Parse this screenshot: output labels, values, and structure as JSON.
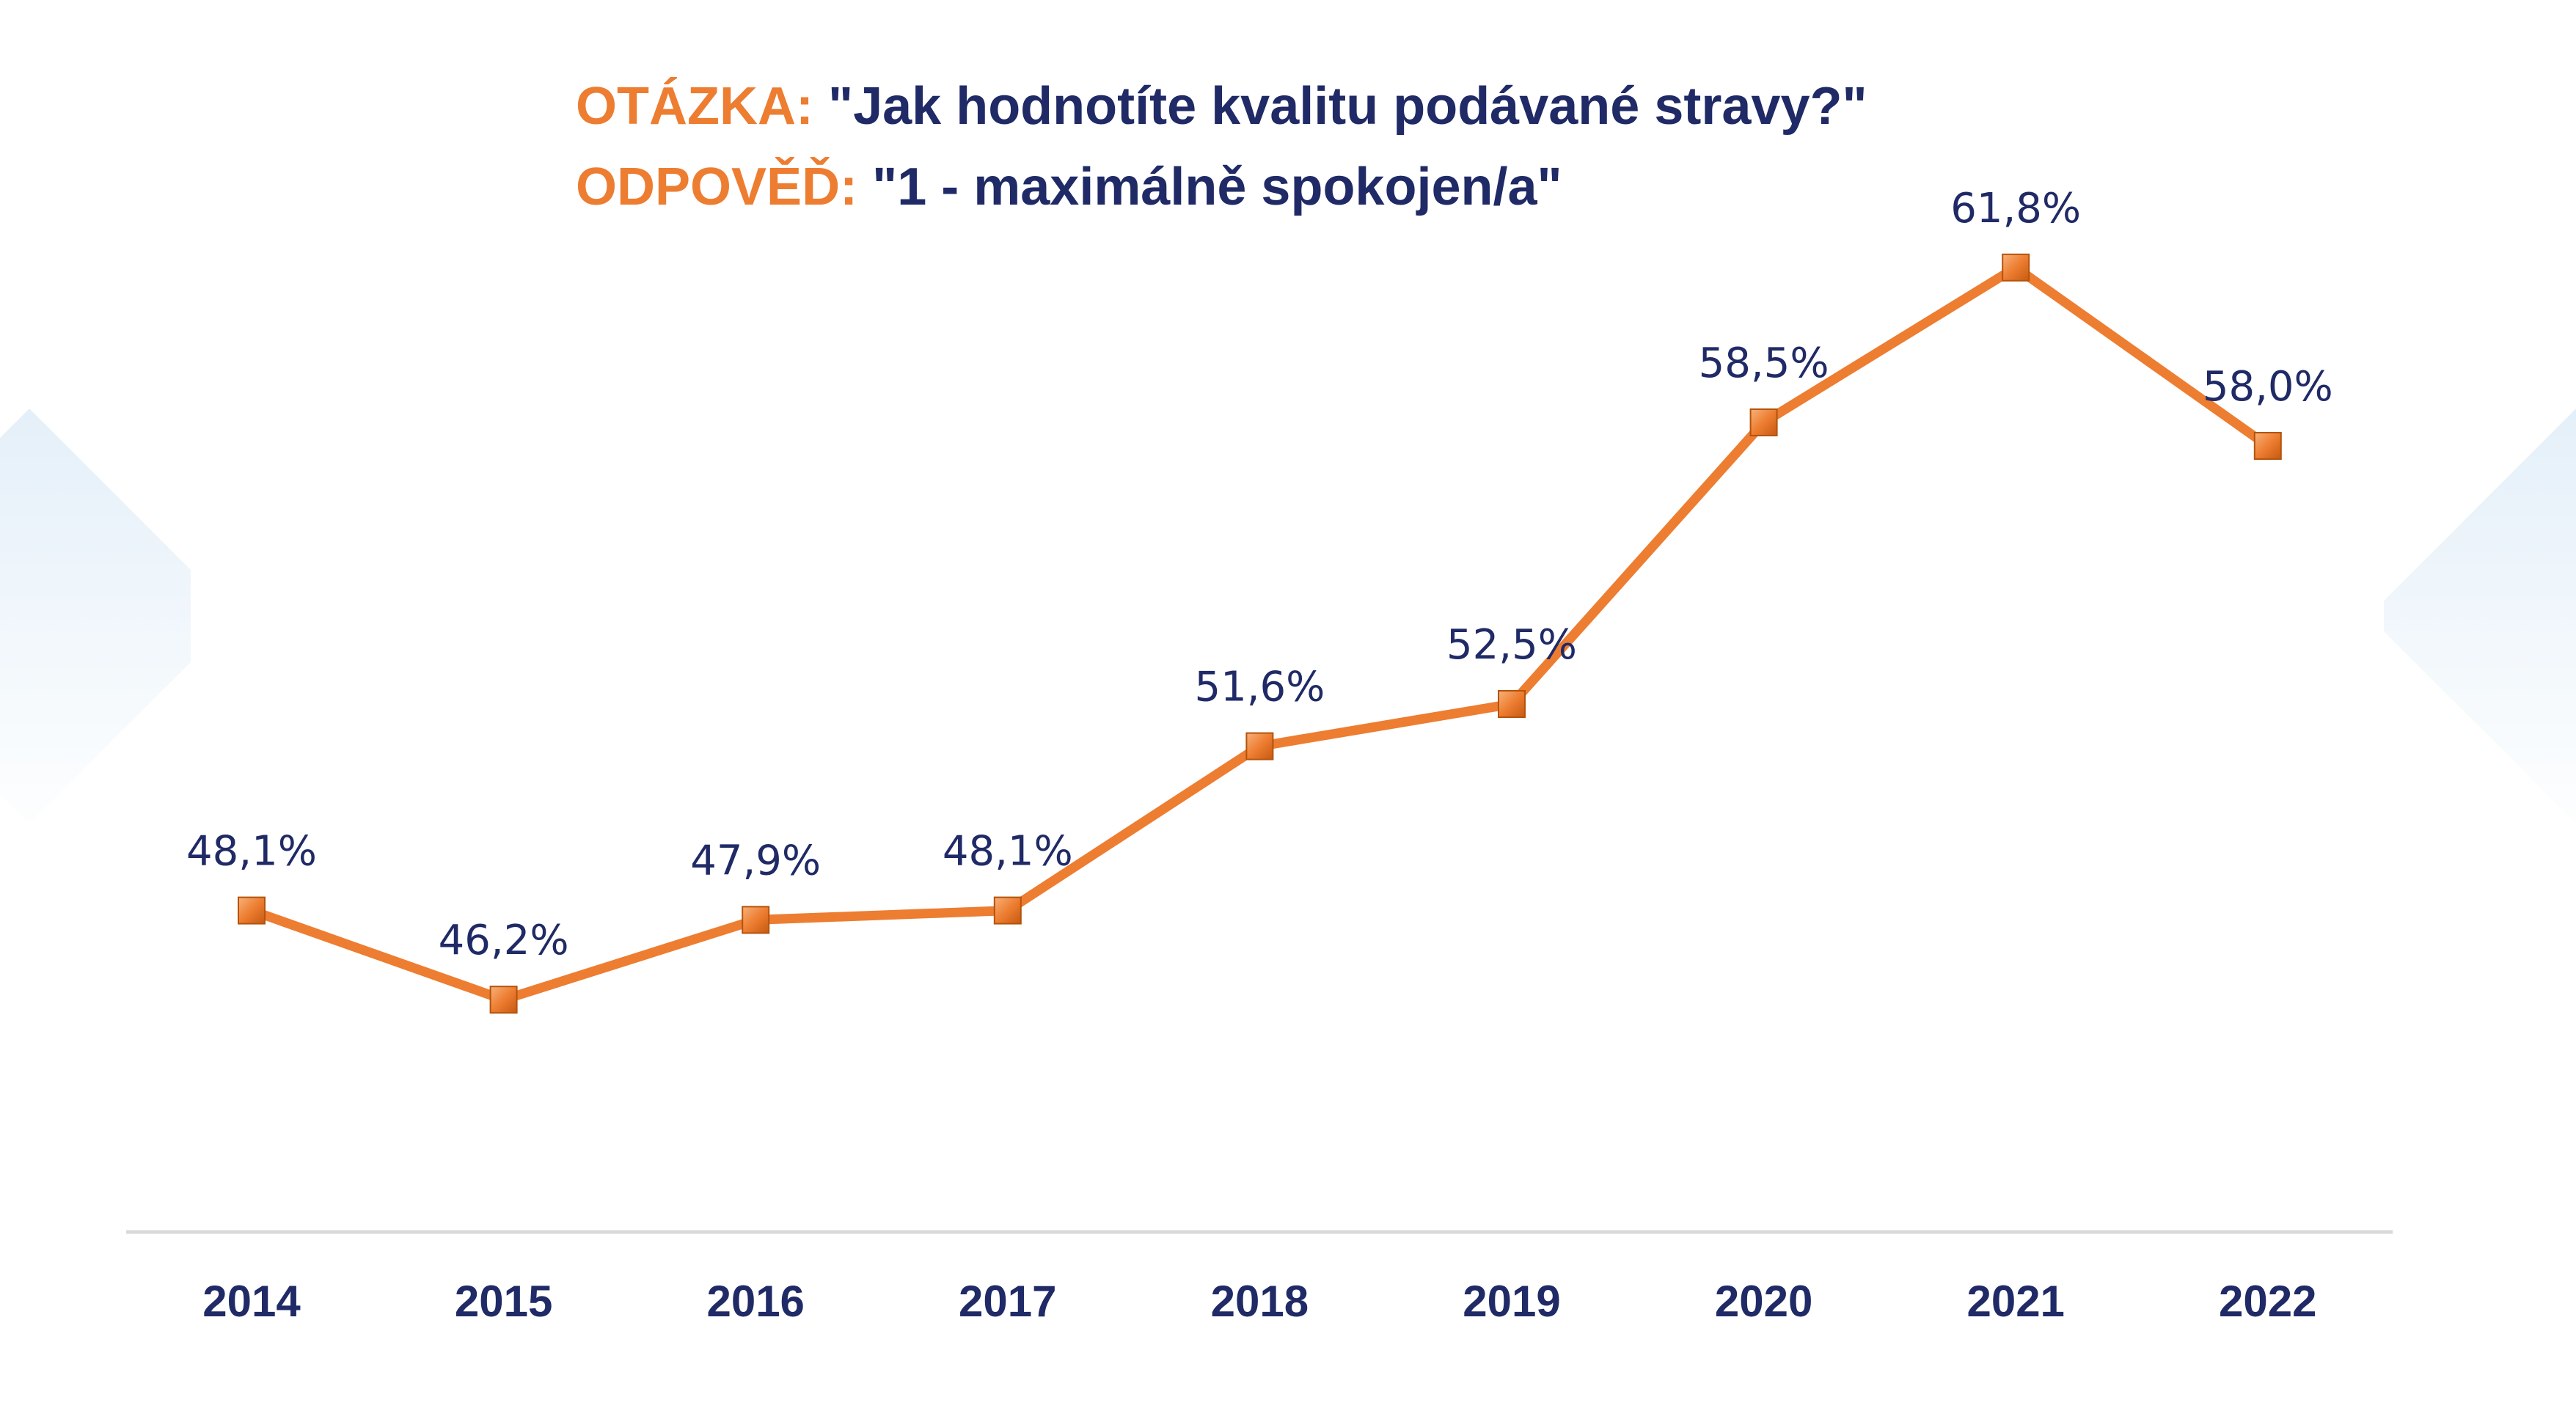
{
  "title": {
    "question_label": "OTÁZKA:",
    "question_text": "\"Jak hodnotíte kvalitu podávané stravy?\"",
    "answer_label": "ODPOVĚĎ:",
    "answer_text": "\"1 - maximálně spokojen/a\""
  },
  "colors": {
    "accent": "#ED7D31",
    "text": "#1F2A66",
    "axis": "#D9D9D9"
  },
  "chart_data": {
    "type": "line",
    "categories": [
      "2014",
      "2015",
      "2016",
      "2017",
      "2018",
      "2019",
      "2020",
      "2021",
      "2022"
    ],
    "series": [
      {
        "values": [
          48.1,
          46.2,
          47.9,
          48.1,
          51.6,
          52.5,
          58.5,
          61.8,
          58.0
        ],
        "labels": [
          "48,1%",
          "46,2%",
          "47,9%",
          "48,1%",
          "51,6%",
          "52,5%",
          "58,5%",
          "61,8%",
          "58,0%"
        ]
      }
    ],
    "ylim": [
      37.5,
      67.5
    ],
    "grid": false,
    "legend": "none",
    "marker": "square"
  }
}
